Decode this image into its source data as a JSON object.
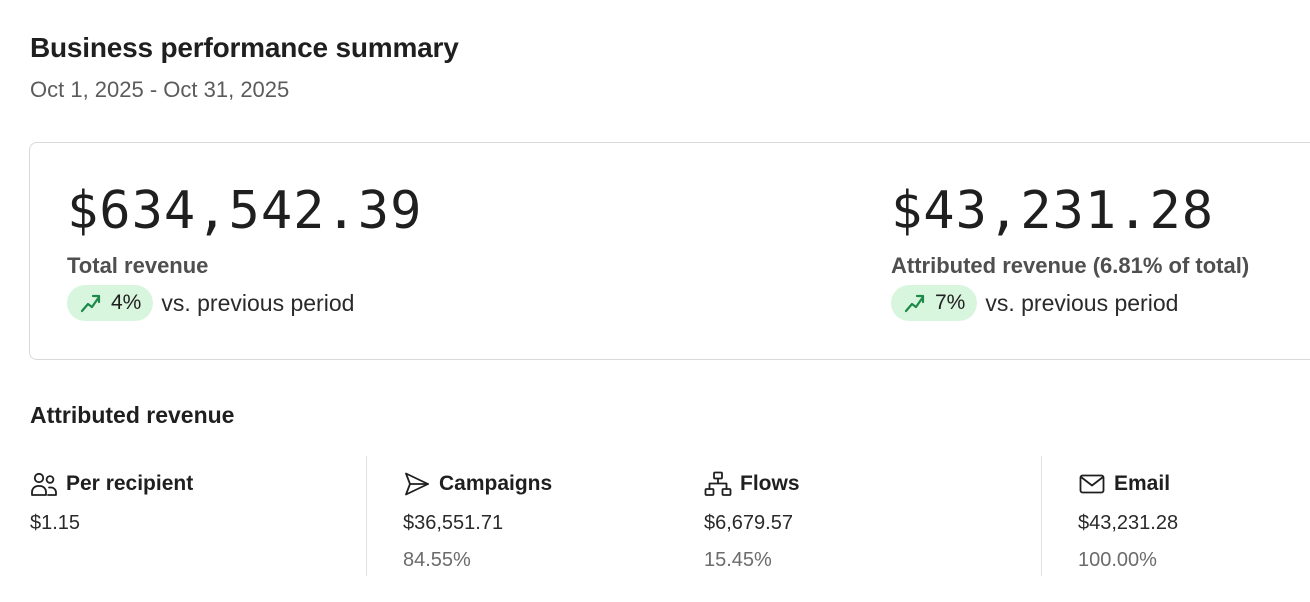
{
  "header": {
    "title": "Business performance summary",
    "date_range": "Oct 1, 2025 - Oct 31, 2025"
  },
  "summary": {
    "total": {
      "value": "$634,542.39",
      "label": "Total revenue",
      "change": "4%",
      "change_text": "vs. previous period",
      "change_icon": "trend-up-icon"
    },
    "attributed": {
      "value": "$43,231.28",
      "label": "Attributed revenue (6.81% of total)",
      "change": "7%",
      "change_text": "vs. previous period",
      "change_icon": "trend-up-icon"
    }
  },
  "attributed_section": {
    "title": "Attributed revenue",
    "stats": [
      {
        "label": "Per recipient",
        "icon": "users-icon",
        "value": "$1.15",
        "percent": ""
      },
      {
        "label": "Campaigns",
        "icon": "send-icon",
        "value": "$36,551.71",
        "percent": "84.55%"
      },
      {
        "label": "Flows",
        "icon": "flow-icon",
        "value": "$6,679.57",
        "percent": "15.45%"
      },
      {
        "label": "Email",
        "icon": "mail-icon",
        "value": "$43,231.28",
        "percent": "100.00%"
      }
    ]
  },
  "colors": {
    "pill_bg": "#d8f5dd",
    "trend_green": "#1e8a4a",
    "border": "#d9d9d9"
  }
}
